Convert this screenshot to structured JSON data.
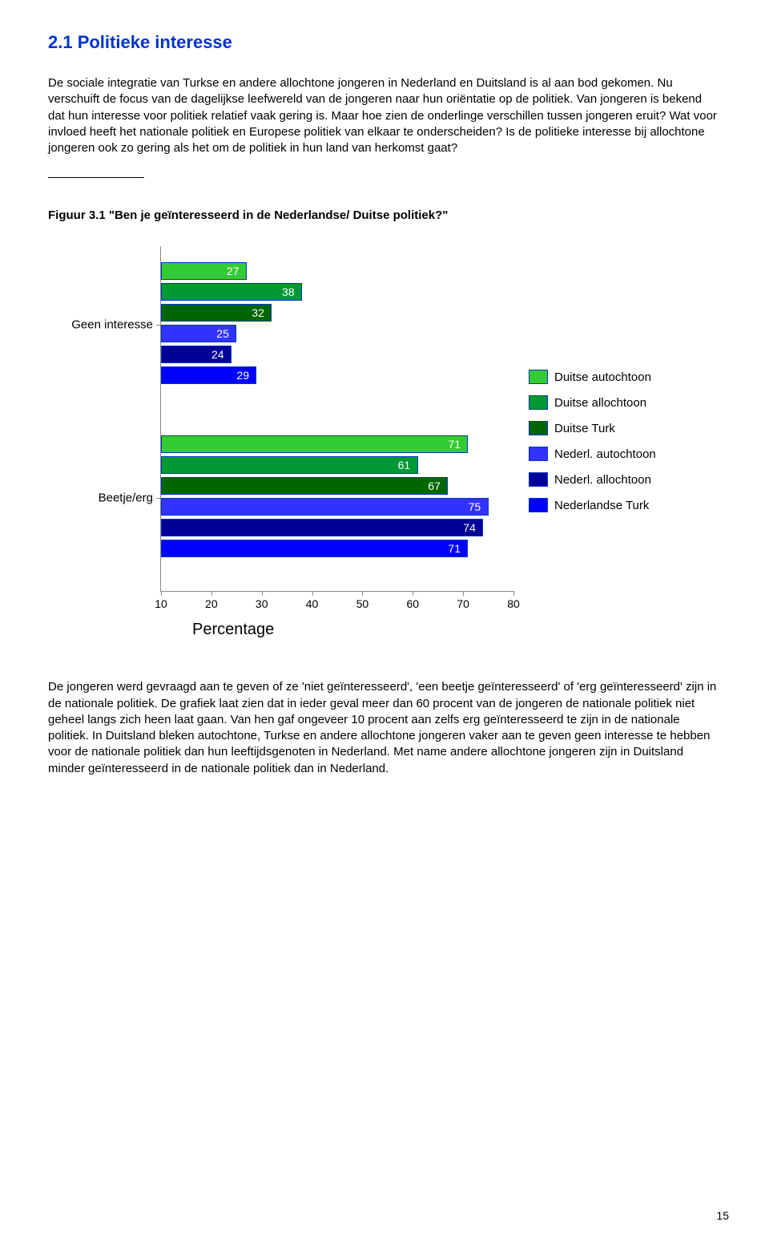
{
  "section_title": "2.1 Politieke interesse",
  "paragraph1": "De sociale integratie van Turkse en andere allochtone jongeren in Nederland en Duitsland is al aan bod gekomen. Nu verschuift de focus van de dagelijkse leefwereld van de jongeren naar hun oriëntatie op de politiek. Van jongeren is bekend dat hun interesse voor politiek relatief vaak gering is. Maar hoe zien de onderlinge verschillen tussen jongeren eruit? Wat voor invloed heeft het nationale politiek en Europese politiek van elkaar te onderscheiden? Is de politieke interesse bij allochtone jongeren ook zo gering als het om de politiek in hun land van herkomst gaat?",
  "figure_caption": "Figuur 3.1 \"Ben je geïnteresseerd in de Nederlandse/ Duitse politiek?\"",
  "paragraph2": "De jongeren werd gevraagd aan te geven of ze 'niet geïnteresseerd', 'een beetje geïnteresseerd' of 'erg geïnteresseerd' zijn in de nationale politiek. De grafiek laat zien dat in ieder geval meer dan 60 procent van de jongeren de nationale politiek niet geheel langs zich heen laat gaan. Van hen gaf ongeveer 10 procent aan zelfs erg geïnteresseerd te zijn in de nationale politiek. In Duitsland bleken autochtone, Turkse en andere allochtone jongeren vaker aan te geven geen interesse te hebben voor de nationale politiek dan hun leeftijdsgenoten in Nederland. Met name andere allochtone jongeren zijn in Duitsland minder geïnteresseerd in de nationale politiek dan in Nederland.",
  "page_number": "15",
  "chart": {
    "type": "horizontal-bar",
    "x_min": 10,
    "x_max": 80,
    "x_ticks": [
      10,
      20,
      30,
      40,
      50,
      60,
      70,
      80
    ],
    "x_axis_title": "Percentage",
    "y_categories": [
      "Geen interesse",
      "Beetje/erg"
    ],
    "plot_bg": "#ffffff",
    "border_color": "#888888",
    "bar_border_color": "#0033cc",
    "value_label_color": "#ffffff",
    "groups": [
      {
        "category": "Geen interesse",
        "bars": [
          {
            "value": 27,
            "color": "#33cc33"
          },
          {
            "value": 38,
            "color": "#009933"
          },
          {
            "value": 32,
            "color": "#006600"
          },
          {
            "value": 25,
            "color": "#3333ff"
          },
          {
            "value": 24,
            "color": "#000099"
          },
          {
            "value": 29,
            "color": "#0000ff"
          }
        ]
      },
      {
        "category": "Beetje/erg",
        "bars": [
          {
            "value": 71,
            "color": "#33cc33"
          },
          {
            "value": 61,
            "color": "#009933"
          },
          {
            "value": 67,
            "color": "#006600"
          },
          {
            "value": 75,
            "color": "#3333ff"
          },
          {
            "value": 74,
            "color": "#000099"
          },
          {
            "value": 71,
            "color": "#0000ff"
          }
        ]
      }
    ],
    "legend": [
      {
        "label": "Duitse autochtoon",
        "color": "#33cc33"
      },
      {
        "label": "Duitse allochtoon",
        "color": "#009933"
      },
      {
        "label": "Duitse Turk",
        "color": "#006600"
      },
      {
        "label": "Nederl. autochtoon",
        "color": "#3333ff"
      },
      {
        "label": "Nederl. allochtoon",
        "color": "#000099"
      },
      {
        "label": "Nederlandse Turk",
        "color": "#0000ff"
      }
    ]
  }
}
